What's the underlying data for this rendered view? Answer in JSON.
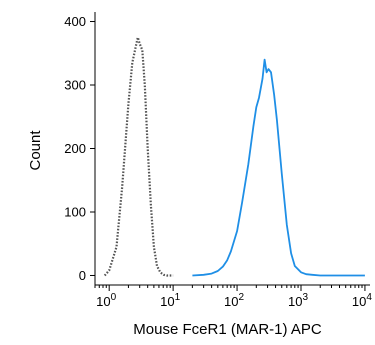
{
  "chart_data": {
    "type": "line",
    "title": "",
    "xlabel": "Mouse FceR1 (MAR-1) APC",
    "ylabel": "Count",
    "x_scale": "log10",
    "xlim": [
      0.6,
      12000
    ],
    "ylim": [
      -15,
      415
    ],
    "grid": false,
    "legend": "none",
    "x_ticks": [
      {
        "value": 1,
        "base": "10",
        "exp": "0"
      },
      {
        "value": 10,
        "base": "10",
        "exp": "1"
      },
      {
        "value": 100,
        "base": "10",
        "exp": "2"
      },
      {
        "value": 1000,
        "base": "10",
        "exp": "3"
      },
      {
        "value": 10000,
        "base": "10",
        "exp": "4"
      }
    ],
    "y_ticks": [
      {
        "value": 0,
        "label": "0"
      },
      {
        "value": 100,
        "label": "100"
      },
      {
        "value": 200,
        "label": "200"
      },
      {
        "value": 300,
        "label": "300"
      },
      {
        "value": 400,
        "label": "400"
      }
    ],
    "series": [
      {
        "style": "dotted",
        "color": "#555555",
        "x": [
          0.85,
          1.0,
          1.3,
          1.6,
          2.0,
          2.3,
          2.6,
          2.8,
          3.0,
          3.3,
          3.6,
          4.0,
          4.5,
          5.0,
          5.6,
          6.3,
          7.1,
          8.0,
          10.0
        ],
        "y": [
          0,
          8,
          45,
          140,
          270,
          335,
          360,
          375,
          365,
          355,
          300,
          200,
          110,
          45,
          15,
          5,
          1,
          0,
          0
        ]
      },
      {
        "style": "solid",
        "color": "#1f8fe6",
        "x": [
          20,
          30,
          40,
          50,
          60,
          70,
          80,
          100,
          120,
          150,
          180,
          200,
          220,
          250,
          270,
          290,
          310,
          340,
          380,
          420,
          500,
          600,
          700,
          800,
          1000,
          1200,
          1500,
          2000,
          3000,
          10000
        ],
        "y": [
          0,
          1,
          3,
          7,
          14,
          24,
          38,
          70,
          115,
          175,
          235,
          265,
          280,
          310,
          340,
          320,
          325,
          320,
          285,
          245,
          160,
          80,
          35,
          15,
          5,
          2,
          1,
          0,
          0,
          0
        ]
      }
    ]
  }
}
